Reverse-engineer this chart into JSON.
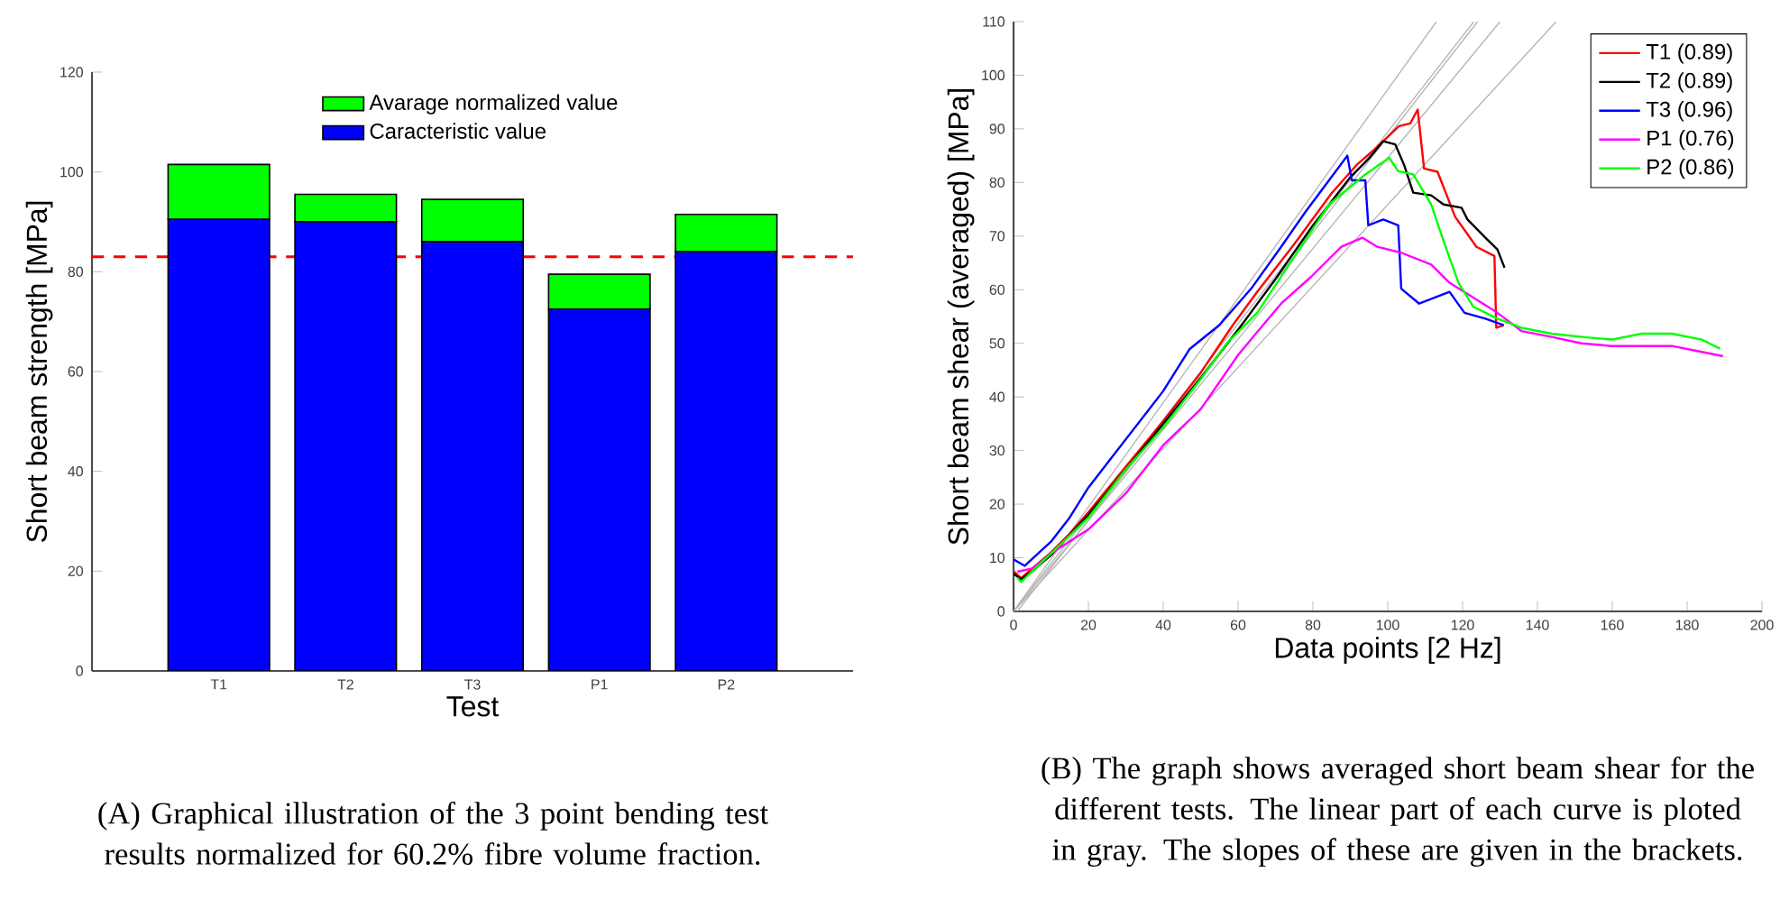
{
  "chart_data": [
    {
      "type": "bar",
      "xlabel": "Test",
      "ylabel": "Short beam strength [MPa]",
      "categories": [
        "T1",
        "T2",
        "T3",
        "P1",
        "P2"
      ],
      "stacked": true,
      "legend": "top",
      "ylim": [
        0,
        120
      ],
      "yticks": [
        0,
        20,
        40,
        60,
        80,
        100,
        120
      ],
      "series": [
        {
          "name": "Caracteristic value",
          "color": "#0000ff",
          "values": [
            90.5,
            90,
            86,
            72.5,
            84
          ]
        },
        {
          "name": "Avarage normalized value",
          "color": "#00ff00",
          "values": [
            11,
            5.5,
            8.5,
            7,
            7.5
          ]
        }
      ],
      "ref_lines": [
        {
          "axis": "y",
          "value": 83,
          "color": "#ff0000",
          "line_style": "dashed"
        }
      ],
      "annotations": [
        "(A) Graphical illustration of the 3 point bending test results normalized for 60.2% fibre volume fraction."
      ]
    },
    {
      "type": "line",
      "xlabel": "Data points [2 Hz]",
      "ylabel": "Short beam shear (averaged) [MPa]",
      "legend": "top right",
      "marker": "none",
      "xlim": [
        0,
        200
      ],
      "xticks": [
        0,
        20,
        40,
        60,
        80,
        100,
        120,
        140,
        160,
        180,
        200
      ],
      "ylim": [
        0,
        110
      ],
      "yticks": [
        0,
        10,
        20,
        30,
        40,
        50,
        60,
        70,
        80,
        90,
        100,
        110
      ],
      "series": [
        {
          "color": "#b4b4b4",
          "x": [
            0,
            113
          ],
          "values": [
            0,
            110
          ]
        },
        {
          "color": "#b4b4b4",
          "x": [
            0,
            123
          ],
          "values": [
            0,
            110
          ]
        },
        {
          "color": "#b4b4b4",
          "x": [
            1,
            124
          ],
          "values": [
            0,
            110
          ]
        },
        {
          "color": "#b4b4b4",
          "x": [
            0,
            130
          ],
          "values": [
            0,
            110
          ]
        },
        {
          "color": "#b4b4b4",
          "x": [
            0,
            145
          ],
          "values": [
            0,
            110
          ]
        },
        {
          "name": "T1 (0.89)",
          "color": "#ff0000",
          "x": [
            0,
            2,
            5,
            10,
            15,
            20,
            30,
            40,
            50,
            58.6,
            65,
            75,
            85,
            92,
            97,
            103,
            106,
            108,
            109.7,
            113.3,
            118,
            123.7,
            128.5,
            129,
            131
          ],
          "values": [
            7.5,
            6.2,
            8,
            11,
            14.5,
            18.5,
            27,
            35.5,
            44.5,
            53.4,
            59.5,
            68.5,
            78,
            83.5,
            86.5,
            90.5,
            91,
            93.6,
            82.6,
            82,
            73.6,
            68,
            66.3,
            52.9,
            53.4
          ]
        },
        {
          "name": "T2 (0.89)",
          "color": "#000000",
          "x": [
            0,
            2,
            5,
            10,
            20,
            30,
            40,
            50,
            60,
            70,
            80,
            90,
            95,
            98.8,
            102,
            104.4,
            106.8,
            111.6,
            114.9,
            119.7,
            121.3,
            126.1,
            129.3,
            131.2
          ],
          "values": [
            7,
            6,
            7.5,
            10.5,
            18,
            26.5,
            35,
            43.5,
            52.5,
            62,
            72,
            81,
            84.5,
            87.7,
            87.1,
            83.2,
            78.1,
            77.6,
            75.9,
            75.3,
            73.1,
            69.7,
            67.5,
            64.1
          ]
        },
        {
          "name": "T3 (0.96)",
          "color": "#0000ff",
          "x": [
            0,
            3,
            10,
            15,
            20,
            30,
            40,
            47,
            55,
            63.5,
            71.5,
            78,
            86,
            89.2,
            90.4,
            94,
            94.8,
            98.8,
            102.8,
            103.6,
            108.4,
            116.5,
            120.5,
            126.1,
            131
          ],
          "values": [
            9.7,
            8.5,
            13,
            17.5,
            23.1,
            32.1,
            41.1,
            48.9,
            53.4,
            60.2,
            68,
            74.5,
            82,
            85,
            80.4,
            80.4,
            72,
            73.1,
            72,
            60.2,
            57.4,
            59.6,
            55.7,
            54.6,
            53.4
          ]
        },
        {
          "name": "P1 (0.76)",
          "color": "#ff00ff",
          "x": [
            1,
            5,
            10,
            20,
            30,
            40,
            50,
            60,
            65,
            71.5,
            79.5,
            87.6,
            93.2,
            97.2,
            103.6,
            111.6,
            116.5,
            122.9,
            129.3,
            135.7,
            143.8,
            151.8,
            159.8,
            167.9,
            175.9,
            183.9,
            189.6
          ],
          "values": [
            7.4,
            8,
            10.8,
            15.3,
            22,
            31,
            37.7,
            47.8,
            52,
            57.4,
            62.4,
            68,
            69.7,
            68,
            66.9,
            64.7,
            61.3,
            58.5,
            55.7,
            52.3,
            51.2,
            50,
            49.5,
            49.5,
            49.5,
            48.4,
            47.6
          ]
        },
        {
          "name": "P2 (0.86)",
          "color": "#00ff00",
          "x": [
            1,
            2,
            10,
            20,
            30,
            40,
            50,
            57,
            65.1,
            74.7,
            84.3,
            94,
            100.4,
            102.8,
            106.8,
            111.6,
            114.9,
            118.9,
            122.9,
            129.3,
            135.7,
            143.8,
            151.8,
            159.8,
            167.9,
            175.9,
            183.9,
            188.8
          ],
          "values": [
            6.3,
            5.5,
            10.8,
            17.5,
            26.5,
            34.3,
            43.3,
            50,
            55.7,
            65.8,
            75.9,
            81.5,
            84.6,
            82.1,
            81.5,
            75.9,
            69.1,
            61.3,
            56.8,
            54.6,
            52.9,
            51.8,
            51.2,
            50.7,
            51.8,
            51.8,
            50.7,
            49
          ]
        }
      ],
      "annotations": [
        "(B) The graph shows averaged short beam shear for the different tests. The linear part of each curve is ploted in gray. The slopes of these are given in the brackets."
      ]
    }
  ]
}
